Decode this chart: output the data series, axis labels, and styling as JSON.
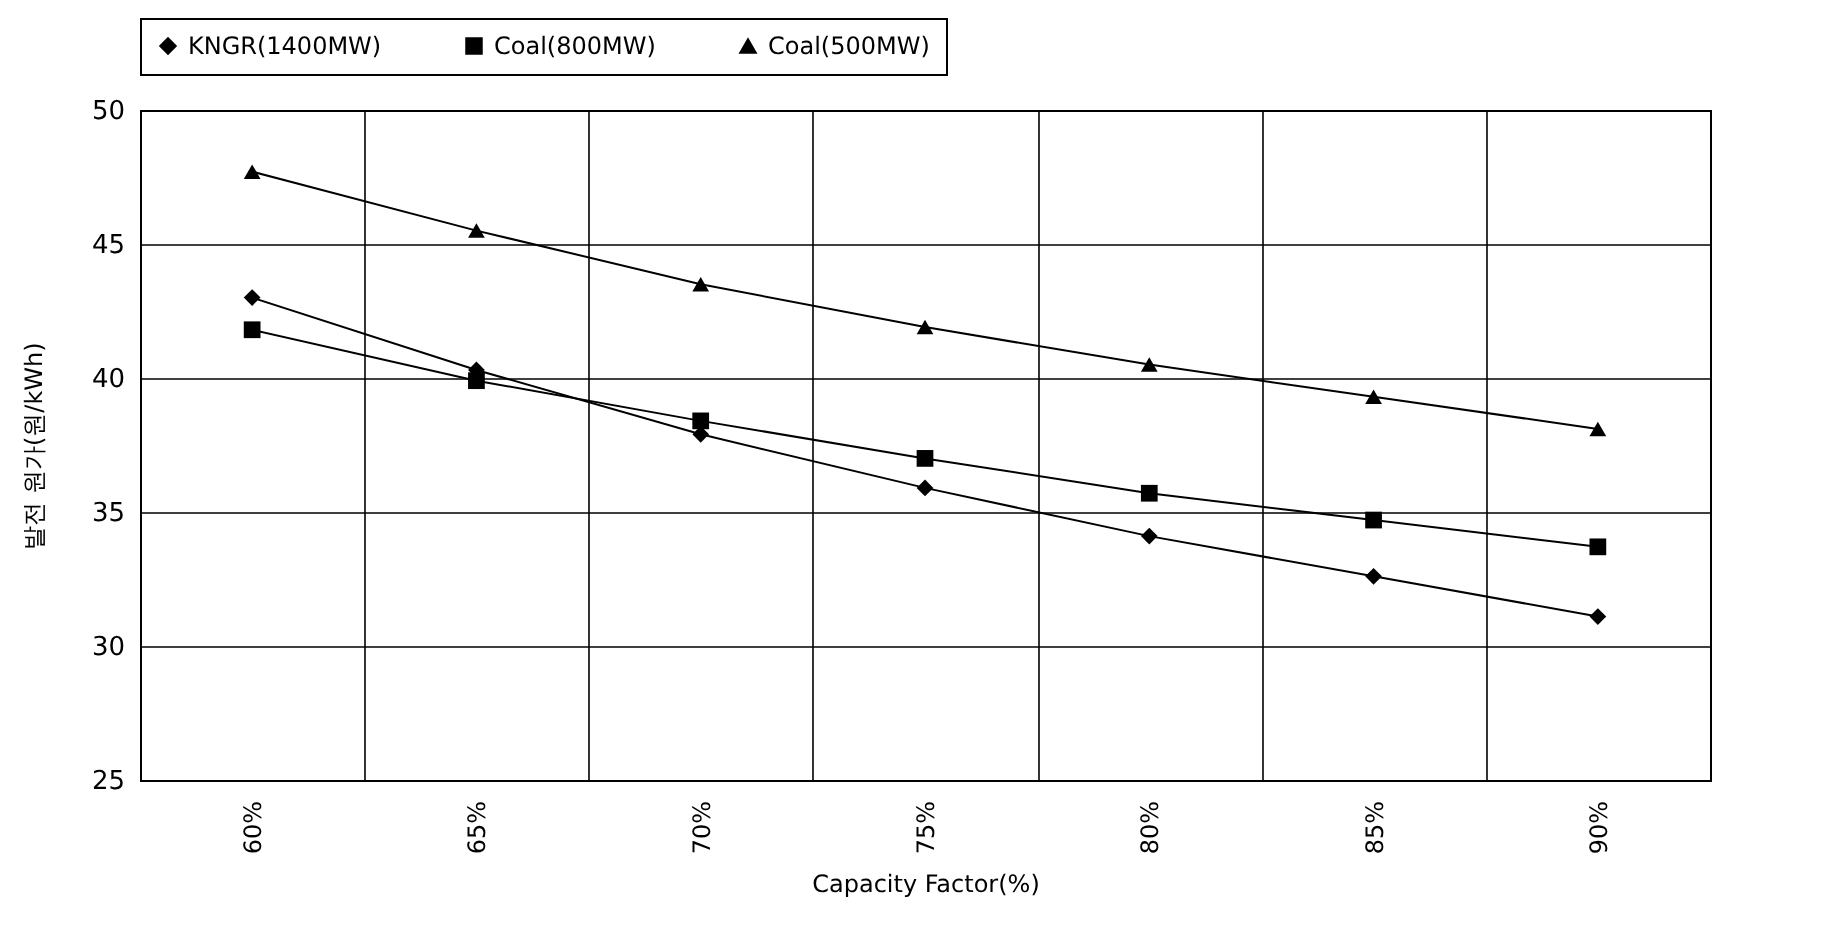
{
  "chart_data": {
    "type": "line",
    "xlabel": "Capacity Factor(%)",
    "ylabel": "발전 원가(원/kWh)",
    "categories": [
      "60%",
      "65%",
      "70%",
      "75%",
      "80%",
      "85%",
      "90%"
    ],
    "series": [
      {
        "name": "KNGR(1400MW)",
        "color": "#000000",
        "marker": "diamond",
        "values": [
          43.0,
          40.3,
          37.9,
          35.9,
          34.1,
          32.6,
          31.1
        ]
      },
      {
        "name": "Coal(800MW)",
        "color": "#000000",
        "marker": "square",
        "values": [
          41.8,
          39.9,
          38.4,
          37.0,
          35.7,
          34.7,
          33.7
        ]
      },
      {
        "name": "Coal(500MW)",
        "color": "#000000",
        "marker": "triangle",
        "values": [
          47.7,
          45.5,
          43.5,
          41.9,
          40.5,
          39.3,
          38.1
        ]
      }
    ],
    "ylim": [
      25,
      50
    ],
    "yticks": [
      25,
      30,
      35,
      40,
      45,
      50
    ],
    "grid": true,
    "legend": "top",
    "line_style": "solid"
  }
}
